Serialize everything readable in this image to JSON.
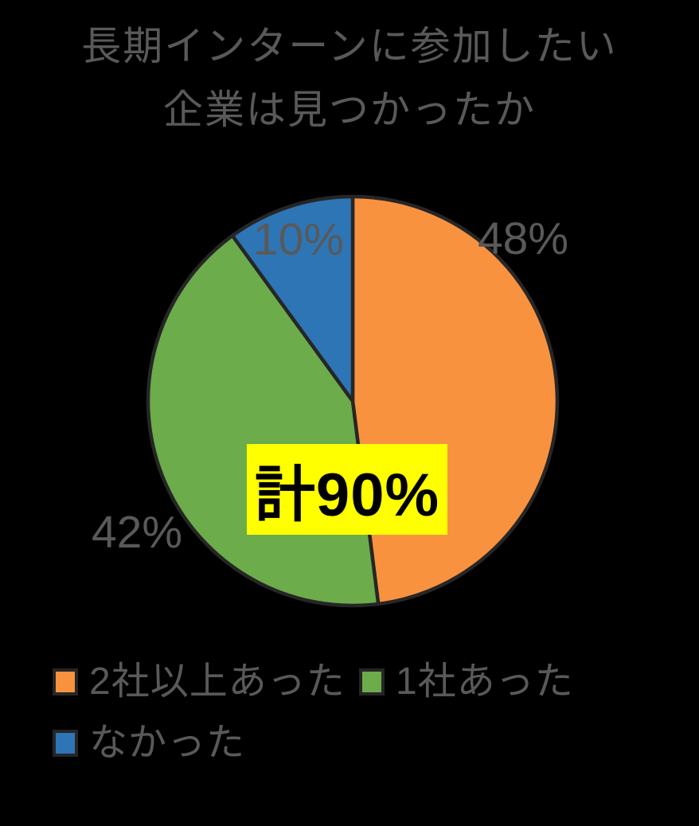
{
  "title": {
    "line1": "長期インターンに参加したい",
    "line2": "企業は見つかったか"
  },
  "chart_data": {
    "type": "pie",
    "title": "長期インターンに参加したい企業は見つかったか",
    "start_angle_deg": 0,
    "direction": "clockwise",
    "slices": [
      {
        "label": "2社以上あった",
        "value": 48,
        "pct_label": "48%",
        "color": "#F9923F"
      },
      {
        "label": "1社あった",
        "value": 42,
        "pct_label": "42%",
        "color": "#6CAC4B"
      },
      {
        "label": "なかった",
        "value": 10,
        "pct_label": "10%",
        "color": "#2E75B6"
      }
    ],
    "annotation": {
      "text": "計90%",
      "highlight_color": "#FFFF00",
      "text_color": "#000000"
    },
    "slice_border_color": "#262626",
    "label_color": "#595959",
    "background_color": "#000000",
    "legend_position": "bottom"
  }
}
